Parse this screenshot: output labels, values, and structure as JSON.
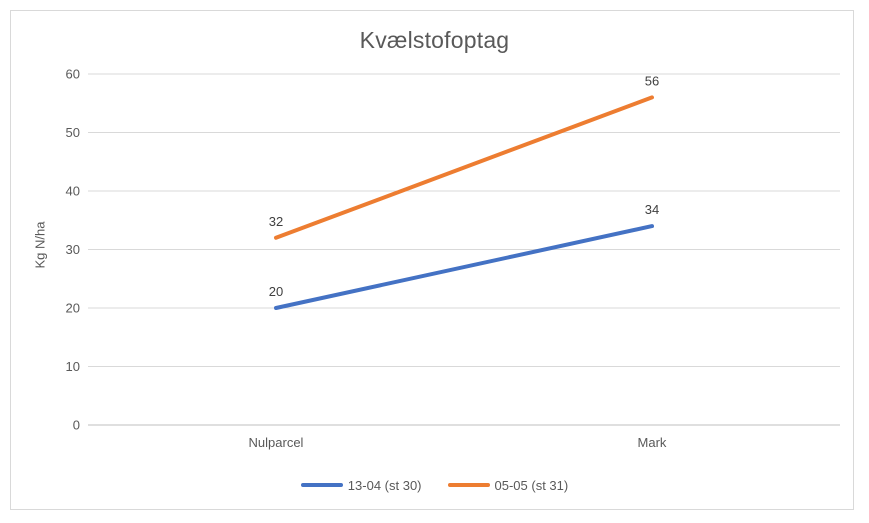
{
  "chart_data": {
    "type": "line",
    "title": "Kvælstofoptag",
    "xlabel": "",
    "ylabel": "Kg N/ha",
    "categories": [
      "Nulparcel",
      "Mark"
    ],
    "series": [
      {
        "name": "13-04 (st 30)",
        "values": [
          20,
          34
        ],
        "color": "#4472C4"
      },
      {
        "name": "05-05 (st 31)",
        "values": [
          32,
          56
        ],
        "color": "#ED7D31"
      }
    ],
    "ylim": [
      0,
      60
    ],
    "y_ticks": [
      0,
      10,
      20,
      30,
      40,
      50,
      60
    ],
    "grid": true,
    "data_labels": true,
    "legend_position": "bottom",
    "colors": {
      "gridline": "#D9D9D9",
      "axis_line": "#BFBFBF",
      "axis_text": "#595959",
      "data_label_text": "#404040",
      "chart_border": "#D9D9D9"
    }
  }
}
